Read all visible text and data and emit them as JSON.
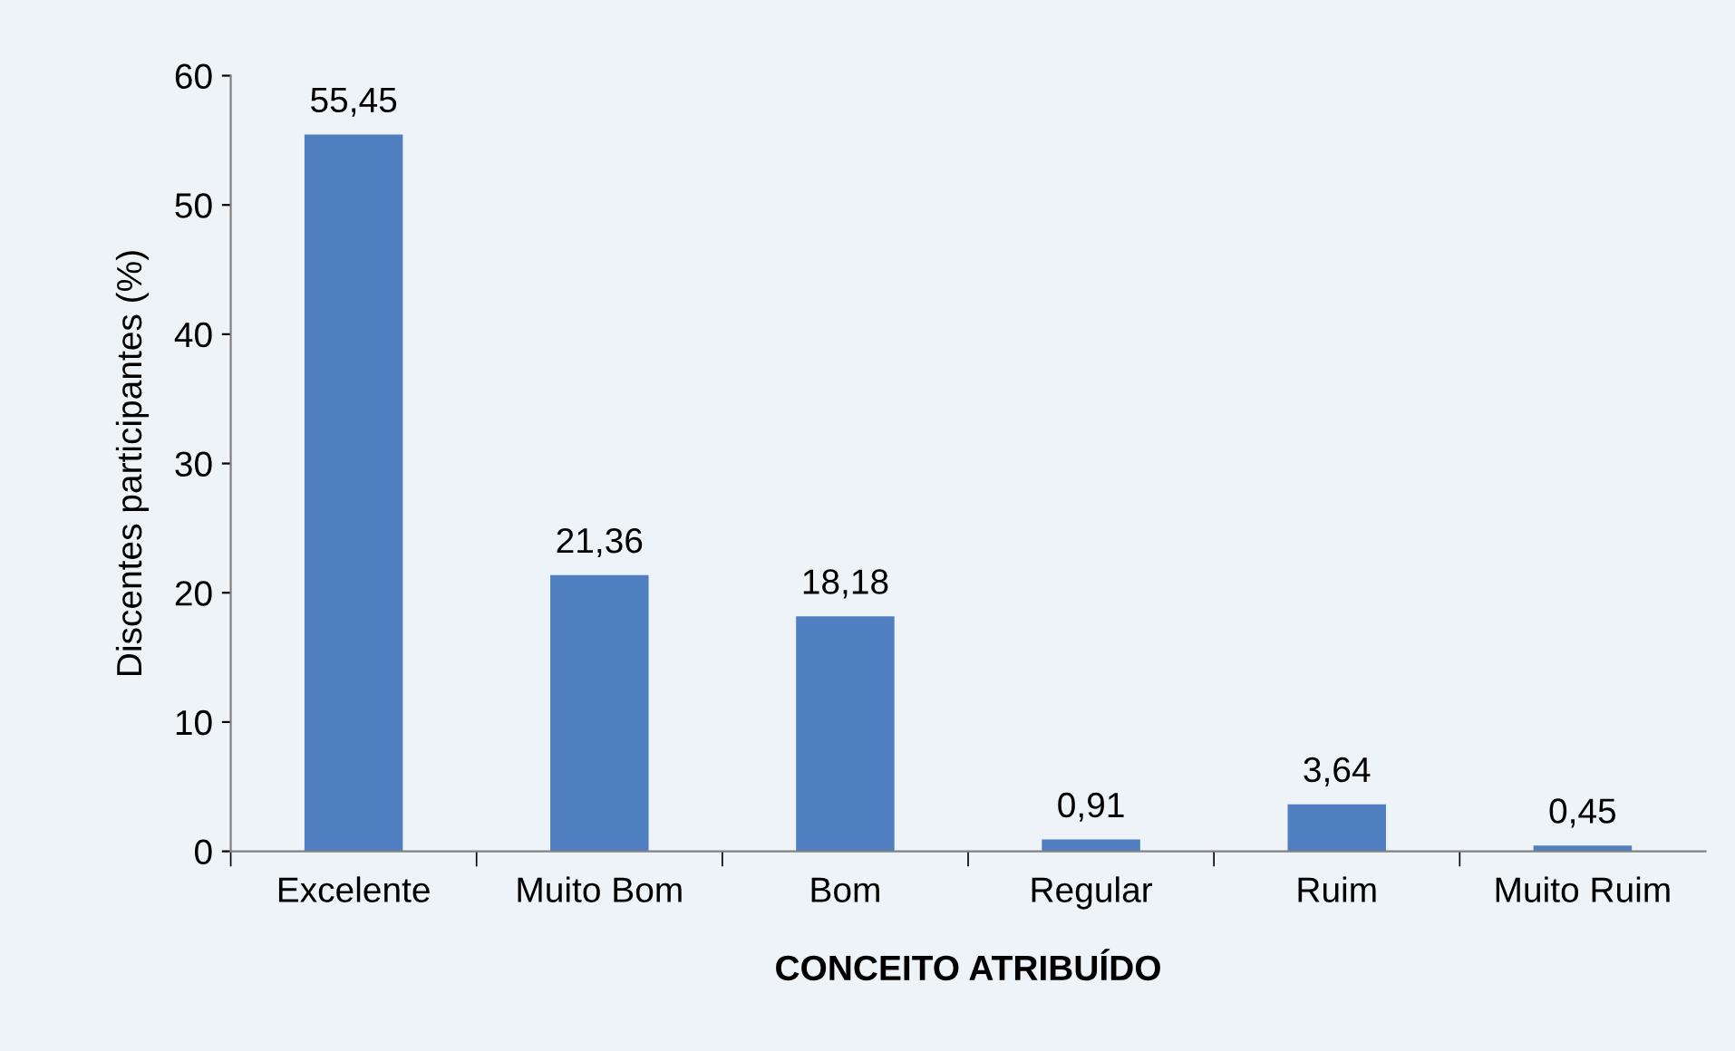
{
  "chart_data": {
    "type": "bar",
    "xlabel": "CONCEITO ATRIBUÍDO",
    "ylabel": "Discentes participantes (%)",
    "categories": [
      "Excelente",
      "Muito Bom",
      "Bom",
      "Regular",
      "Ruim",
      "Muito Ruim"
    ],
    "values": [
      55.45,
      21.36,
      18.18,
      0.91,
      3.64,
      0.45
    ],
    "value_labels": [
      "55,45",
      "21,36",
      "18,18",
      "0,91",
      "3,64",
      "0,45"
    ],
    "color": "#4f7fc0",
    "ylim": [
      0,
      60
    ],
    "yticks": [
      0,
      10,
      20,
      30,
      40,
      50,
      60
    ],
    "grid": false,
    "legend": false
  }
}
